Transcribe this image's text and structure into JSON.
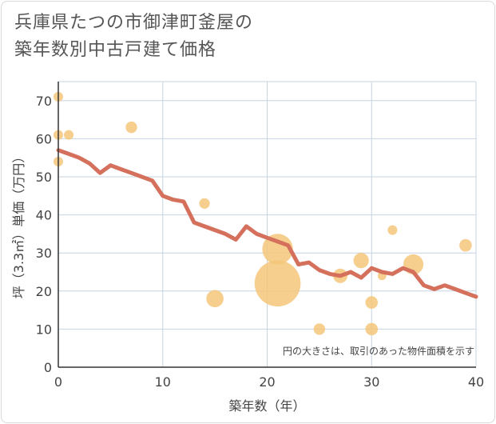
{
  "title_lines": [
    "兵庫県たつの市御津町釜屋の",
    "築年数別中古戸建て価格"
  ],
  "colors": {
    "line": "#d4705c",
    "bubble": "#f5c57a",
    "grid": "#c6d4e2",
    "axis": "#333333"
  },
  "chart_data": {
    "type": "scatter",
    "xlabel": "築年数（年）",
    "ylabel": "坪（3.3㎡）単価（万円）",
    "xlim": [
      0,
      40
    ],
    "ylim": [
      0,
      75
    ],
    "xticks": [
      0,
      10,
      20,
      30,
      40
    ],
    "yticks": [
      0,
      10,
      20,
      30,
      40,
      50,
      60,
      70
    ],
    "grid": true,
    "note": "円の大きさは、取引のあった物件面積を示す",
    "points": [
      {
        "x": 0,
        "y": 71,
        "size": 1.0
      },
      {
        "x": 0,
        "y": 61,
        "size": 1.0
      },
      {
        "x": 0,
        "y": 54,
        "size": 1.0
      },
      {
        "x": 1,
        "y": 61,
        "size": 1.0
      },
      {
        "x": 7,
        "y": 63,
        "size": 1.2
      },
      {
        "x": 14,
        "y": 43,
        "size": 1.1
      },
      {
        "x": 15,
        "y": 18,
        "size": 1.8
      },
      {
        "x": 21,
        "y": 31,
        "size": 3.2
      },
      {
        "x": 21,
        "y": 22,
        "size": 4.8
      },
      {
        "x": 25,
        "y": 10,
        "size": 1.2
      },
      {
        "x": 27,
        "y": 24,
        "size": 1.5
      },
      {
        "x": 29,
        "y": 28,
        "size": 1.6
      },
      {
        "x": 30,
        "y": 17,
        "size": 1.3
      },
      {
        "x": 30,
        "y": 10,
        "size": 1.3
      },
      {
        "x": 31,
        "y": 24,
        "size": 0.9
      },
      {
        "x": 32,
        "y": 36,
        "size": 1.0
      },
      {
        "x": 34,
        "y": 27,
        "size": 2.1
      },
      {
        "x": 39,
        "y": 32,
        "size": 1.3
      }
    ],
    "trend": {
      "x": [
        0,
        1,
        2,
        3,
        4,
        5,
        6,
        7,
        8,
        9,
        10,
        11,
        12,
        13,
        14,
        15,
        16,
        17,
        18,
        19,
        20,
        21,
        22,
        23,
        24,
        25,
        26,
        27,
        28,
        29,
        30,
        31,
        32,
        33,
        34,
        35,
        36,
        37,
        38,
        39,
        40
      ],
      "y": [
        57,
        56,
        55,
        53.5,
        51,
        53,
        52,
        51,
        50,
        49,
        45,
        44,
        43.5,
        38,
        37,
        36,
        35,
        33.5,
        37,
        35,
        34,
        33,
        32,
        27,
        27.5,
        25.5,
        24.5,
        24,
        25,
        23.5,
        26,
        25,
        24.5,
        26,
        25,
        21.5,
        20.5,
        21.5,
        20.5,
        19.5,
        18.5
      ]
    }
  }
}
